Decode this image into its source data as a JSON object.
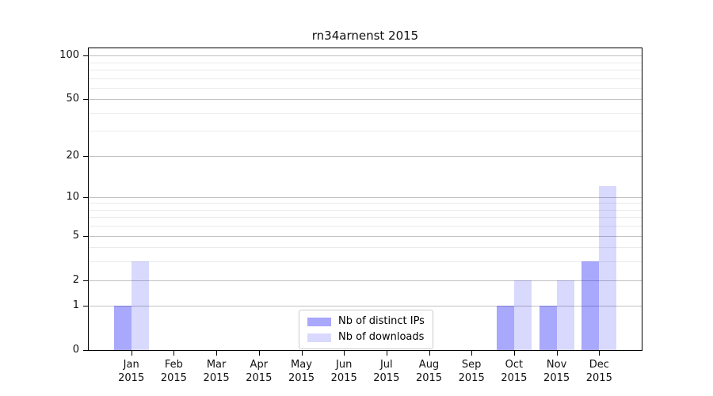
{
  "chart_data": {
    "type": "bar",
    "title": "rn34arnenst 2015",
    "categories": [
      "Jan",
      "Feb",
      "Mar",
      "Apr",
      "May",
      "Jun",
      "Jul",
      "Aug",
      "Sep",
      "Oct",
      "Nov",
      "Dec"
    ],
    "x_tick_second_line": "2015",
    "series": [
      {
        "name": "Nb of distinct IPs",
        "color": "rgba(0,0,250,0.34)",
        "values": [
          1,
          0,
          0,
          0,
          0,
          0,
          0,
          0,
          0,
          1,
          1,
          3
        ]
      },
      {
        "name": "Nb of downloads",
        "color": "rgba(0,0,250,0.15)",
        "values": [
          3,
          0,
          0,
          0,
          0,
          0,
          0,
          0,
          0,
          2,
          2,
          12
        ]
      }
    ],
    "y_scale": "log10(1+x)",
    "y_major_ticks": [
      0,
      1,
      2,
      5,
      10,
      20,
      50,
      100
    ],
    "y_minor_ticks": [
      3,
      4,
      6,
      7,
      8,
      9,
      30,
      40,
      60,
      70,
      80,
      90
    ],
    "ylim": [
      0,
      112
    ],
    "xlabel": "",
    "ylabel": "",
    "grid": "horizontal",
    "legend_position": "lower center",
    "accent_colors": {
      "distinct_ips_hex": "#a9a9fa",
      "downloads_hex": "#dbdbfa",
      "major_grid": "#c2c2c2",
      "minor_grid": "#ebebeb"
    }
  }
}
